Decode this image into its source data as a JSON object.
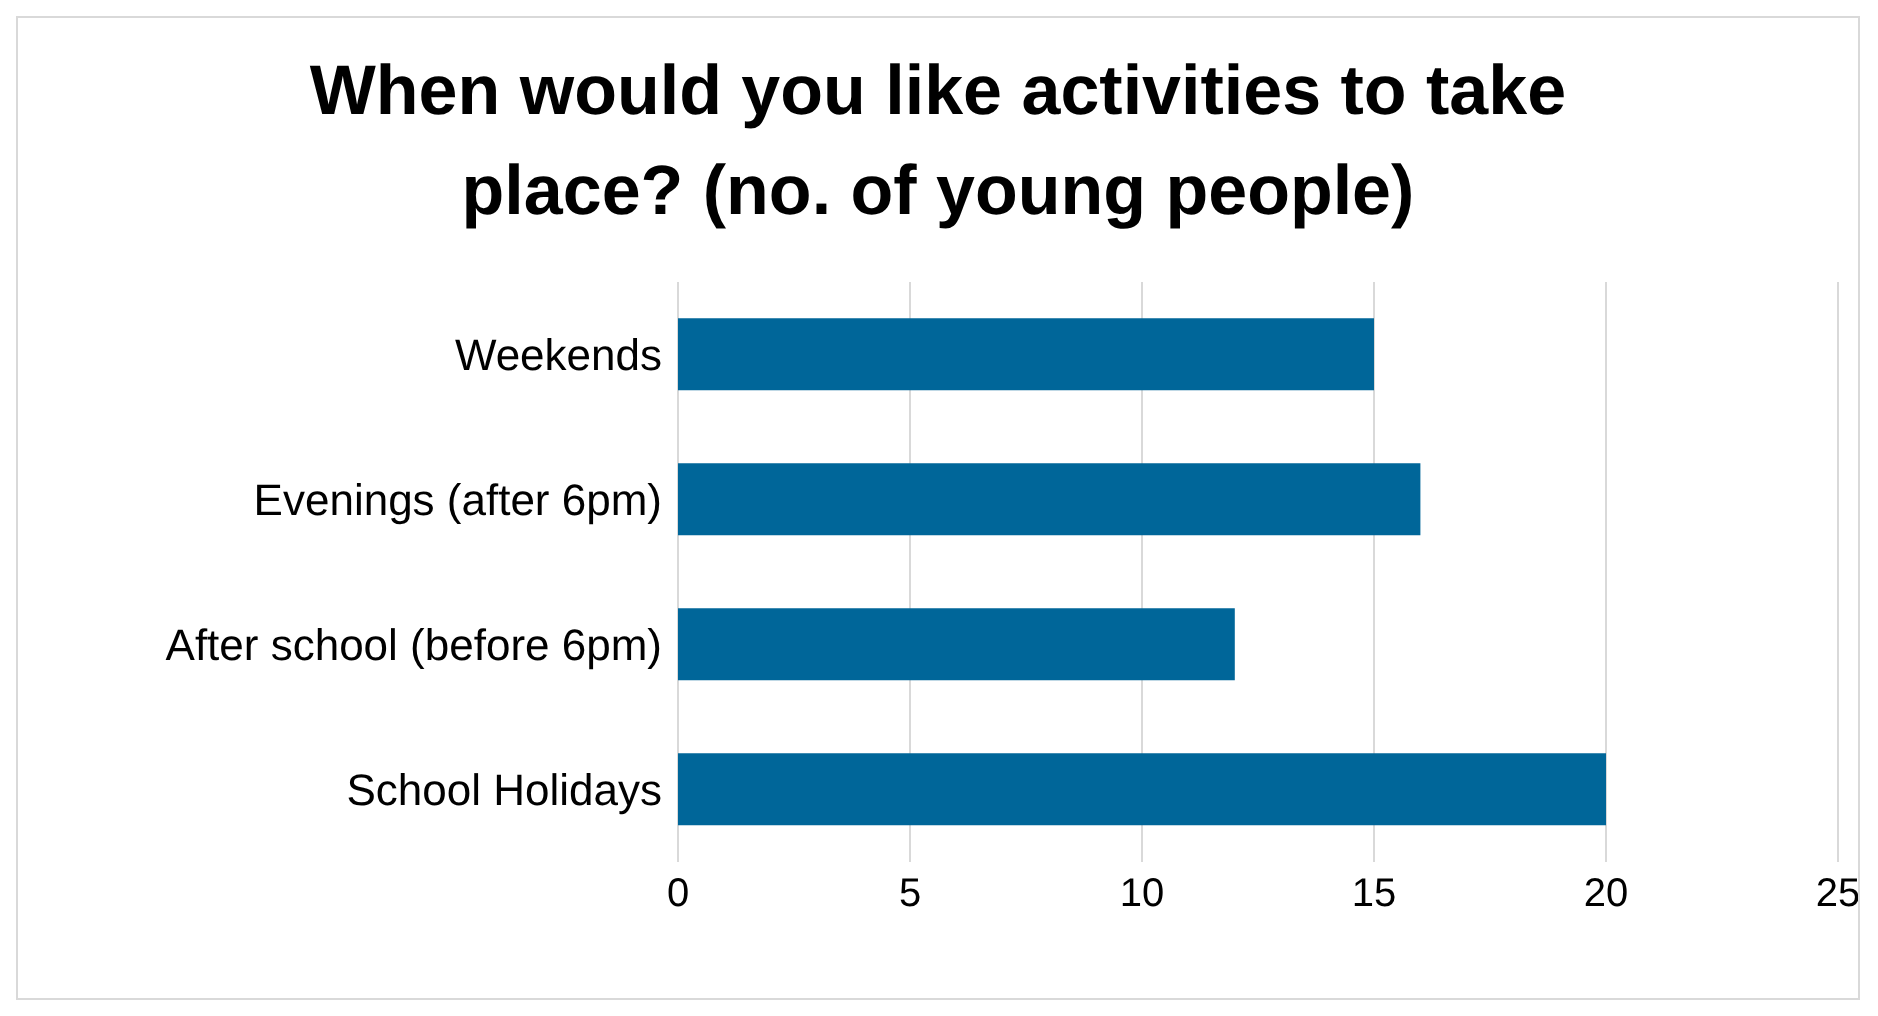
{
  "chart_data": {
    "type": "bar",
    "orientation": "horizontal",
    "title": "When would you like activities to take place? (no. of young people)",
    "categories": [
      "Weekends",
      "Evenings (after 6pm)",
      "After school (before 6pm)",
      "School Holidays"
    ],
    "values": [
      15,
      16,
      12,
      20
    ],
    "color": "#006699",
    "xlim": [
      0,
      25
    ],
    "xticks": [
      0,
      5,
      10,
      15,
      20,
      25
    ],
    "grid": "x"
  }
}
